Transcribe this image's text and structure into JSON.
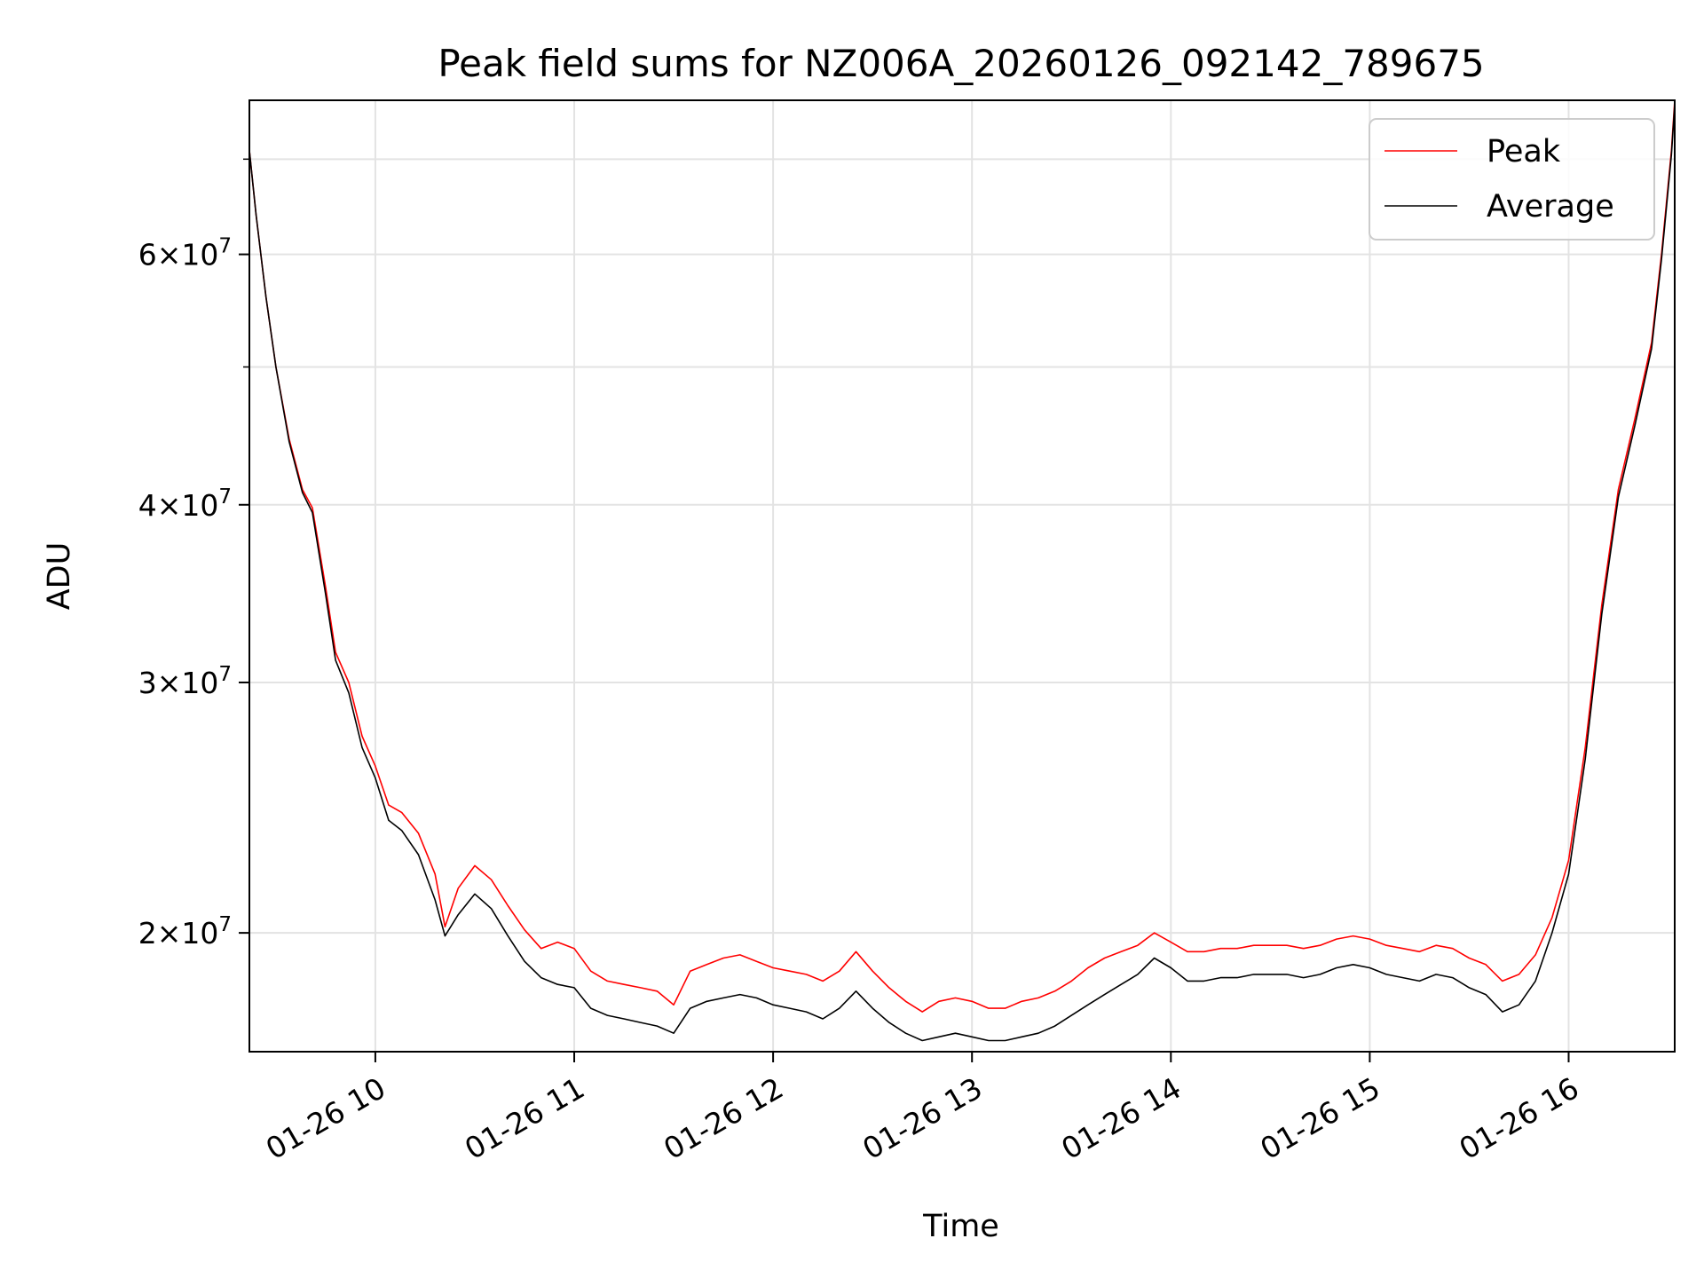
{
  "chart_data": {
    "type": "line",
    "title": "Peak field sums for NZ006A_20260126_092142_789675",
    "xlabel": "Time",
    "ylabel": "ADU",
    "y_scale": "log",
    "x_range": [
      "2026-01-26 09:22",
      "2026-01-26 16:32"
    ],
    "ylim": [
      16500000,
      77000000
    ],
    "grid": true,
    "legend_position": "top-right",
    "x_ticks": [
      {
        "time": "2026-01-26 10:00",
        "label": "01-26 10"
      },
      {
        "time": "2026-01-26 11:00",
        "label": "01-26 11"
      },
      {
        "time": "2026-01-26 12:00",
        "label": "01-26 12"
      },
      {
        "time": "2026-01-26 13:00",
        "label": "01-26 13"
      },
      {
        "time": "2026-01-26 14:00",
        "label": "01-26 14"
      },
      {
        "time": "2026-01-26 15:00",
        "label": "01-26 15"
      },
      {
        "time": "2026-01-26 16:00",
        "label": "01-26 16"
      }
    ],
    "y_ticks": [
      {
        "value": 20000000,
        "mantissa": "2",
        "exponent": "7"
      },
      {
        "value": 30000000,
        "mantissa": "3",
        "exponent": "7"
      },
      {
        "value": 40000000,
        "mantissa": "4",
        "exponent": "7"
      },
      {
        "value": 60000000,
        "mantissa": "6",
        "exponent": "7"
      }
    ],
    "y_minor_ticks": [
      50000000,
      70000000
    ],
    "series": [
      {
        "name": "Peak",
        "color": "#ff0000",
        "points": [
          [
            "2026-01-26 09:22",
            71000000
          ],
          [
            "2026-01-26 09:24",
            64000000
          ],
          [
            "2026-01-26 09:27",
            56000000
          ],
          [
            "2026-01-26 09:30",
            50000000
          ],
          [
            "2026-01-26 09:34",
            44500000
          ],
          [
            "2026-01-26 09:38",
            41000000
          ],
          [
            "2026-01-26 09:41",
            39800000
          ],
          [
            "2026-01-26 09:45",
            35000000
          ],
          [
            "2026-01-26 09:48",
            31500000
          ],
          [
            "2026-01-26 09:52",
            30000000
          ],
          [
            "2026-01-26 09:56",
            27500000
          ],
          [
            "2026-01-26 10:00",
            26200000
          ],
          [
            "2026-01-26 10:04",
            24600000
          ],
          [
            "2026-01-26 10:08",
            24300000
          ],
          [
            "2026-01-26 10:13",
            23500000
          ],
          [
            "2026-01-26 10:18",
            22000000
          ],
          [
            "2026-01-26 10:21",
            20200000
          ],
          [
            "2026-01-26 10:25",
            21500000
          ],
          [
            "2026-01-26 10:30",
            22300000
          ],
          [
            "2026-01-26 10:35",
            21800000
          ],
          [
            "2026-01-26 10:40",
            20900000
          ],
          [
            "2026-01-26 10:45",
            20100000
          ],
          [
            "2026-01-26 10:50",
            19500000
          ],
          [
            "2026-01-26 10:55",
            19700000
          ],
          [
            "2026-01-26 11:00",
            19500000
          ],
          [
            "2026-01-26 11:05",
            18800000
          ],
          [
            "2026-01-26 11:10",
            18500000
          ],
          [
            "2026-01-26 11:15",
            18400000
          ],
          [
            "2026-01-26 11:20",
            18300000
          ],
          [
            "2026-01-26 11:25",
            18200000
          ],
          [
            "2026-01-26 11:30",
            17800000
          ],
          [
            "2026-01-26 11:35",
            18800000
          ],
          [
            "2026-01-26 11:40",
            19000000
          ],
          [
            "2026-01-26 11:45",
            19200000
          ],
          [
            "2026-01-26 11:50",
            19300000
          ],
          [
            "2026-01-26 11:55",
            19100000
          ],
          [
            "2026-01-26 12:00",
            18900000
          ],
          [
            "2026-01-26 12:05",
            18800000
          ],
          [
            "2026-01-26 12:10",
            18700000
          ],
          [
            "2026-01-26 12:15",
            18500000
          ],
          [
            "2026-01-26 12:20",
            18800000
          ],
          [
            "2026-01-26 12:25",
            19400000
          ],
          [
            "2026-01-26 12:30",
            18800000
          ],
          [
            "2026-01-26 12:35",
            18300000
          ],
          [
            "2026-01-26 12:40",
            17900000
          ],
          [
            "2026-01-26 12:45",
            17600000
          ],
          [
            "2026-01-26 12:50",
            17900000
          ],
          [
            "2026-01-26 12:55",
            18000000
          ],
          [
            "2026-01-26 13:00",
            17900000
          ],
          [
            "2026-01-26 13:05",
            17700000
          ],
          [
            "2026-01-26 13:10",
            17700000
          ],
          [
            "2026-01-26 13:15",
            17900000
          ],
          [
            "2026-01-26 13:20",
            18000000
          ],
          [
            "2026-01-26 13:25",
            18200000
          ],
          [
            "2026-01-26 13:30",
            18500000
          ],
          [
            "2026-01-26 13:35",
            18900000
          ],
          [
            "2026-01-26 13:40",
            19200000
          ],
          [
            "2026-01-26 13:45",
            19400000
          ],
          [
            "2026-01-26 13:50",
            19600000
          ],
          [
            "2026-01-26 13:55",
            20000000
          ],
          [
            "2026-01-26 14:00",
            19700000
          ],
          [
            "2026-01-26 14:05",
            19400000
          ],
          [
            "2026-01-26 14:10",
            19400000
          ],
          [
            "2026-01-26 14:15",
            19500000
          ],
          [
            "2026-01-26 14:20",
            19500000
          ],
          [
            "2026-01-26 14:25",
            19600000
          ],
          [
            "2026-01-26 14:30",
            19600000
          ],
          [
            "2026-01-26 14:35",
            19600000
          ],
          [
            "2026-01-26 14:40",
            19500000
          ],
          [
            "2026-01-26 14:45",
            19600000
          ],
          [
            "2026-01-26 14:50",
            19800000
          ],
          [
            "2026-01-26 14:55",
            19900000
          ],
          [
            "2026-01-26 15:00",
            19800000
          ],
          [
            "2026-01-26 15:05",
            19600000
          ],
          [
            "2026-01-26 15:10",
            19500000
          ],
          [
            "2026-01-26 15:15",
            19400000
          ],
          [
            "2026-01-26 15:20",
            19600000
          ],
          [
            "2026-01-26 15:25",
            19500000
          ],
          [
            "2026-01-26 15:30",
            19200000
          ],
          [
            "2026-01-26 15:35",
            19000000
          ],
          [
            "2026-01-26 15:40",
            18500000
          ],
          [
            "2026-01-26 15:45",
            18700000
          ],
          [
            "2026-01-26 15:50",
            19300000
          ],
          [
            "2026-01-26 15:55",
            20500000
          ],
          [
            "2026-01-26 16:00",
            22500000
          ],
          [
            "2026-01-26 16:05",
            27000000
          ],
          [
            "2026-01-26 16:10",
            34000000
          ],
          [
            "2026-01-26 16:15",
            41000000
          ],
          [
            "2026-01-26 16:20",
            46000000
          ],
          [
            "2026-01-26 16:25",
            52000000
          ],
          [
            "2026-01-26 16:28",
            60000000
          ],
          [
            "2026-01-26 16:31",
            71000000
          ],
          [
            "2026-01-26 16:32",
            77000000
          ]
        ]
      },
      {
        "name": "Average",
        "color": "#000000",
        "points": [
          [
            "2026-01-26 09:22",
            71000000
          ],
          [
            "2026-01-26 09:24",
            64000000
          ],
          [
            "2026-01-26 09:27",
            56000000
          ],
          [
            "2026-01-26 09:30",
            50000000
          ],
          [
            "2026-01-26 09:34",
            44300000
          ],
          [
            "2026-01-26 09:38",
            40800000
          ],
          [
            "2026-01-26 09:41",
            39500000
          ],
          [
            "2026-01-26 09:45",
            34600000
          ],
          [
            "2026-01-26 09:48",
            31100000
          ],
          [
            "2026-01-26 09:52",
            29500000
          ],
          [
            "2026-01-26 09:56",
            27000000
          ],
          [
            "2026-01-26 10:00",
            25700000
          ],
          [
            "2026-01-26 10:04",
            24000000
          ],
          [
            "2026-01-26 10:08",
            23600000
          ],
          [
            "2026-01-26 10:13",
            22700000
          ],
          [
            "2026-01-26 10:18",
            21100000
          ],
          [
            "2026-01-26 10:21",
            19900000
          ],
          [
            "2026-01-26 10:25",
            20600000
          ],
          [
            "2026-01-26 10:30",
            21300000
          ],
          [
            "2026-01-26 10:35",
            20800000
          ],
          [
            "2026-01-26 10:40",
            19900000
          ],
          [
            "2026-01-26 10:45",
            19100000
          ],
          [
            "2026-01-26 10:50",
            18600000
          ],
          [
            "2026-01-26 10:55",
            18400000
          ],
          [
            "2026-01-26 11:00",
            18300000
          ],
          [
            "2026-01-26 11:05",
            17700000
          ],
          [
            "2026-01-26 11:10",
            17500000
          ],
          [
            "2026-01-26 11:15",
            17400000
          ],
          [
            "2026-01-26 11:20",
            17300000
          ],
          [
            "2026-01-26 11:25",
            17200000
          ],
          [
            "2026-01-26 11:30",
            17000000
          ],
          [
            "2026-01-26 11:35",
            17700000
          ],
          [
            "2026-01-26 11:40",
            17900000
          ],
          [
            "2026-01-26 11:45",
            18000000
          ],
          [
            "2026-01-26 11:50",
            18100000
          ],
          [
            "2026-01-26 11:55",
            18000000
          ],
          [
            "2026-01-26 12:00",
            17800000
          ],
          [
            "2026-01-26 12:05",
            17700000
          ],
          [
            "2026-01-26 12:10",
            17600000
          ],
          [
            "2026-01-26 12:15",
            17400000
          ],
          [
            "2026-01-26 12:20",
            17700000
          ],
          [
            "2026-01-26 12:25",
            18200000
          ],
          [
            "2026-01-26 12:30",
            17700000
          ],
          [
            "2026-01-26 12:35",
            17300000
          ],
          [
            "2026-01-26 12:40",
            17000000
          ],
          [
            "2026-01-26 12:45",
            16800000
          ],
          [
            "2026-01-26 12:50",
            16900000
          ],
          [
            "2026-01-26 12:55",
            17000000
          ],
          [
            "2026-01-26 13:00",
            16900000
          ],
          [
            "2026-01-26 13:05",
            16800000
          ],
          [
            "2026-01-26 13:10",
            16800000
          ],
          [
            "2026-01-26 13:15",
            16900000
          ],
          [
            "2026-01-26 13:20",
            17000000
          ],
          [
            "2026-01-26 13:25",
            17200000
          ],
          [
            "2026-01-26 13:30",
            17500000
          ],
          [
            "2026-01-26 13:35",
            17800000
          ],
          [
            "2026-01-26 13:40",
            18100000
          ],
          [
            "2026-01-26 13:45",
            18400000
          ],
          [
            "2026-01-26 13:50",
            18700000
          ],
          [
            "2026-01-26 13:55",
            19200000
          ],
          [
            "2026-01-26 14:00",
            18900000
          ],
          [
            "2026-01-26 14:05",
            18500000
          ],
          [
            "2026-01-26 14:10",
            18500000
          ],
          [
            "2026-01-26 14:15",
            18600000
          ],
          [
            "2026-01-26 14:20",
            18600000
          ],
          [
            "2026-01-26 14:25",
            18700000
          ],
          [
            "2026-01-26 14:30",
            18700000
          ],
          [
            "2026-01-26 14:35",
            18700000
          ],
          [
            "2026-01-26 14:40",
            18600000
          ],
          [
            "2026-01-26 14:45",
            18700000
          ],
          [
            "2026-01-26 14:50",
            18900000
          ],
          [
            "2026-01-26 14:55",
            19000000
          ],
          [
            "2026-01-26 15:00",
            18900000
          ],
          [
            "2026-01-26 15:05",
            18700000
          ],
          [
            "2026-01-26 15:10",
            18600000
          ],
          [
            "2026-01-26 15:15",
            18500000
          ],
          [
            "2026-01-26 15:20",
            18700000
          ],
          [
            "2026-01-26 15:25",
            18600000
          ],
          [
            "2026-01-26 15:30",
            18300000
          ],
          [
            "2026-01-26 15:35",
            18100000
          ],
          [
            "2026-01-26 15:40",
            17600000
          ],
          [
            "2026-01-26 15:45",
            17800000
          ],
          [
            "2026-01-26 15:50",
            18500000
          ],
          [
            "2026-01-26 15:55",
            20000000
          ],
          [
            "2026-01-26 16:00",
            22000000
          ],
          [
            "2026-01-26 16:05",
            26500000
          ],
          [
            "2026-01-26 16:10",
            33500000
          ],
          [
            "2026-01-26 16:15",
            40500000
          ],
          [
            "2026-01-26 16:20",
            45500000
          ],
          [
            "2026-01-26 16:25",
            51500000
          ],
          [
            "2026-01-26 16:28",
            59500000
          ],
          [
            "2026-01-26 16:31",
            70500000
          ],
          [
            "2026-01-26 16:32",
            76500000
          ]
        ]
      }
    ]
  }
}
